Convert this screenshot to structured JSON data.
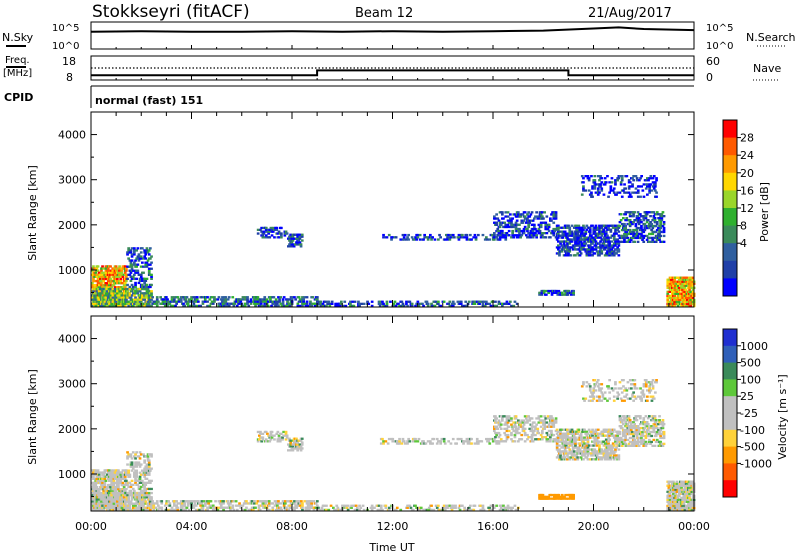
{
  "header": {
    "station": "Stokkseyri (fitACF)",
    "beam": "Beam 12",
    "date": "21/Aug/2017"
  },
  "top_panels": {
    "nsky_label": "N.Sky",
    "nsearch_label": "N.Search",
    "freq_label_line1": "Freq.",
    "freq_label_line2": "[MHz]",
    "nave_label": "Nave",
    "cpid_label": "CPID",
    "cpid_value": "normal (fast) 151",
    "noise_ticks_left": [
      "10^5",
      "10^0"
    ],
    "noise_ticks_right": [
      "10^5",
      "10^0"
    ],
    "freq_ticks": [
      "18",
      "8"
    ],
    "nave_ticks": [
      "60",
      "0"
    ]
  },
  "colors": {
    "power_scale": [
      "#0000ff",
      "#1f3fa8",
      "#2f5f9f",
      "#3a8a5a",
      "#2fb02f",
      "#9ad62a",
      "#ffd700",
      "#ff9a00",
      "#ff5a00",
      "#ff0000"
    ],
    "velocity_scale": [
      "#1f2fd0",
      "#2f5fb8",
      "#3a8a5a",
      "#5ec83a",
      "#c0c0c0",
      "#c0c0c0",
      "#ffd23a",
      "#ff9a00",
      "#ff5a00",
      "#ff0000"
    ]
  },
  "chart_data": [
    {
      "type": "line",
      "panel": "noise",
      "series": [
        {
          "name": "N.Sky",
          "x": [
            "00:00",
            "02:00",
            "04:00",
            "06:00",
            "08:00",
            "10:00",
            "12:00",
            "14:00",
            "16:00",
            "18:00",
            "20:00",
            "21:00",
            "22:00",
            "24:00"
          ],
          "values": [
            3.2,
            3.3,
            3.2,
            3.2,
            3.3,
            3.2,
            3.3,
            3.2,
            3.3,
            3.4,
            3.8,
            4.0,
            3.7,
            3.5
          ]
        }
      ],
      "ylim": [
        "10^0",
        "10^5"
      ]
    },
    {
      "type": "line",
      "panel": "freq-nave",
      "series": [
        {
          "name": "Freq",
          "x": [
            "00:00",
            "09:00",
            "09:00",
            "19:00",
            "19:00",
            "24:00"
          ],
          "values": [
            10,
            10,
            12,
            12,
            10,
            10
          ]
        },
        {
          "name": "Nave",
          "x": [
            "00:00",
            "24:00"
          ],
          "values": [
            30,
            30
          ]
        }
      ],
      "freq_range": [
        8,
        18
      ],
      "nave_range": [
        0,
        60
      ]
    },
    {
      "type": "heatmap",
      "panel": "power",
      "ylabel": "Slant Range [km]",
      "colorbar_label": "Power [dB]",
      "colorbar_ticks": [
        "28",
        "24",
        "20",
        "16",
        "12",
        "8",
        "4"
      ],
      "yticks": [
        "4000",
        "3000",
        "2000",
        "1000"
      ],
      "ylim": [
        180,
        4500
      ],
      "xlim": [
        "00:00",
        "24:00"
      ]
    },
    {
      "type": "heatmap",
      "panel": "velocity",
      "ylabel": "Slant Range [km]",
      "colorbar_label": "Velocity [m s⁻¹]",
      "colorbar_ticks": [
        "1000",
        "500",
        "100",
        "25",
        "-25",
        "-100",
        "-500",
        "-1000"
      ],
      "yticks": [
        "4000",
        "3000",
        "2000",
        "1000"
      ],
      "xticks": [
        "00:00",
        "04:00",
        "08:00",
        "12:00",
        "16:00",
        "20:00",
        "00:00"
      ],
      "xlabel": "Time UT",
      "ylim": [
        180,
        4500
      ],
      "xlim": [
        "00:00",
        "24:00"
      ]
    }
  ]
}
